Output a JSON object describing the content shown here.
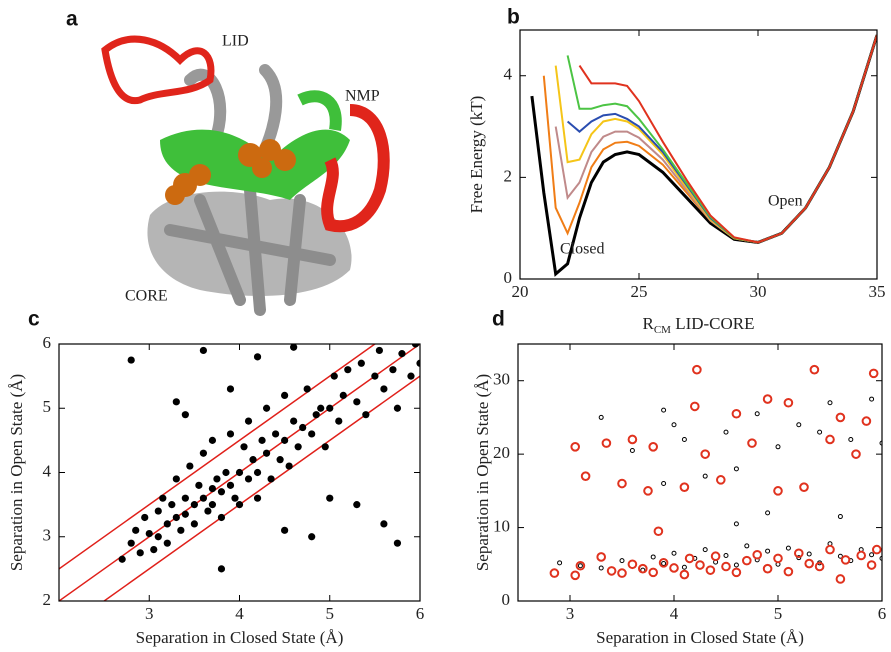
{
  "image_panel": {
    "label": "a",
    "annotations": [
      "LID",
      "NMP",
      "CORE"
    ]
  },
  "chart_data": [
    {
      "type": "line",
      "label": "b",
      "y_label": "Free Energy (kT)",
      "x_label_parts": [
        "R",
        "CM",
        " LID-CORE"
      ],
      "annotations": [
        "Open",
        "Closed"
      ],
      "x": [
        20,
        20.5,
        21,
        21.5,
        22,
        22.5,
        23,
        23.5,
        24,
        24.5,
        25,
        26,
        27,
        28,
        29,
        30,
        31,
        32,
        33,
        34,
        35
      ],
      "xlim": [
        20,
        35
      ],
      "ylim": [
        0,
        4.9
      ],
      "xticks": [
        20,
        25,
        30,
        35
      ],
      "yticks": [
        0,
        2,
        4
      ],
      "series": [
        {
          "color": "#000000",
          "values": [
            null,
            3.6,
            1.7,
            0.1,
            0.3,
            1.2,
            1.9,
            2.3,
            2.45,
            2.5,
            2.45,
            2.1,
            1.6,
            1.1,
            0.78,
            0.72,
            0.9,
            1.4,
            2.2,
            3.3,
            4.8
          ]
        },
        {
          "color": "#f07d16",
          "values": [
            null,
            null,
            4.0,
            1.4,
            0.9,
            1.5,
            2.2,
            2.55,
            2.68,
            2.7,
            2.62,
            2.25,
            1.7,
            1.15,
            0.8,
            0.72,
            0.9,
            1.4,
            2.2,
            3.3,
            4.8
          ]
        },
        {
          "color": "#c08a8a",
          "values": [
            null,
            null,
            null,
            3.0,
            1.6,
            1.9,
            2.5,
            2.8,
            2.9,
            2.9,
            2.78,
            2.35,
            1.75,
            1.15,
            0.8,
            0.72,
            0.9,
            1.4,
            2.2,
            3.3,
            4.8
          ]
        },
        {
          "color": "#f5c518",
          "values": [
            null,
            null,
            null,
            4.2,
            2.3,
            2.35,
            2.85,
            3.1,
            3.15,
            3.1,
            2.95,
            2.45,
            1.8,
            1.17,
            0.8,
            0.72,
            0.9,
            1.4,
            2.2,
            3.3,
            4.8
          ]
        },
        {
          "color": "#2a4db0",
          "values": [
            null,
            null,
            null,
            null,
            3.1,
            2.9,
            3.1,
            3.22,
            3.25,
            3.15,
            3.0,
            2.5,
            1.85,
            1.2,
            0.81,
            0.72,
            0.9,
            1.4,
            2.2,
            3.3,
            4.8
          ]
        },
        {
          "color": "#4cc444",
          "values": [
            null,
            null,
            null,
            null,
            4.4,
            3.35,
            3.35,
            3.42,
            3.45,
            3.4,
            3.15,
            2.55,
            1.88,
            1.22,
            0.81,
            0.72,
            0.9,
            1.4,
            2.2,
            3.3,
            4.8
          ]
        },
        {
          "color": "#e0321e",
          "values": [
            null,
            null,
            null,
            null,
            null,
            4.2,
            3.85,
            3.85,
            3.85,
            3.8,
            3.5,
            2.7,
            1.95,
            1.25,
            0.82,
            0.72,
            0.9,
            1.4,
            2.2,
            3.3,
            4.8
          ]
        }
      ]
    },
    {
      "type": "scatter",
      "label": "c",
      "y_label": "Separation in Open State (Å)",
      "x_label": "Separation in Closed State (Å)",
      "xlim": [
        2,
        6
      ],
      "ylim": [
        2,
        6
      ],
      "xticks": [
        3,
        4,
        5,
        6
      ],
      "yticks": [
        2,
        3,
        4,
        5,
        6
      ],
      "reference_lines": [
        {
          "slope": 1,
          "intercept": 0
        },
        {
          "slope": 1,
          "intercept": 0.5
        },
        {
          "slope": 1,
          "intercept": -0.5
        }
      ],
      "reference_color": "#e0201a",
      "series": [
        {
          "color": "#000000",
          "marker": "filled",
          "x": [
            2.7,
            2.8,
            2.85,
            2.9,
            2.95,
            3.0,
            3.05,
            3.1,
            3.1,
            3.15,
            3.2,
            3.2,
            3.25,
            3.3,
            3.3,
            3.35,
            3.4,
            3.4,
            3.45,
            3.5,
            3.5,
            3.55,
            3.6,
            3.6,
            3.65,
            3.7,
            3.7,
            3.7,
            3.75,
            3.8,
            3.8,
            3.85,
            3.9,
            3.9,
            3.95,
            4.0,
            4.0,
            4.05,
            4.1,
            4.1,
            4.15,
            4.2,
            4.2,
            4.25,
            4.3,
            4.3,
            4.35,
            4.4,
            4.45,
            4.5,
            4.5,
            4.55,
            4.6,
            4.65,
            4.7,
            4.75,
            4.8,
            4.85,
            4.9,
            4.95,
            5.0,
            5.05,
            5.1,
            5.15,
            5.2,
            5.3,
            5.35,
            5.4,
            5.5,
            5.55,
            5.6,
            5.7,
            5.75,
            5.8,
            5.9,
            5.95,
            6.0,
            2.8,
            3.3,
            3.6,
            4.2,
            4.6,
            5.3,
            5.6,
            5.75,
            4.8,
            3.8,
            3.4,
            3.9,
            4.5,
            5.0
          ],
          "values": [
            2.65,
            2.9,
            3.1,
            2.75,
            3.3,
            3.05,
            2.8,
            3.4,
            3.0,
            3.6,
            3.2,
            2.9,
            3.5,
            3.3,
            3.9,
            3.1,
            3.6,
            3.35,
            4.1,
            3.5,
            3.2,
            3.8,
            3.6,
            4.3,
            3.4,
            3.75,
            3.5,
            4.5,
            3.9,
            3.7,
            3.3,
            4.0,
            3.8,
            4.6,
            3.6,
            4.0,
            3.5,
            4.4,
            3.9,
            4.8,
            4.2,
            4.0,
            3.6,
            4.5,
            4.3,
            5.0,
            3.9,
            4.6,
            4.2,
            4.5,
            5.2,
            4.1,
            4.8,
            4.4,
            4.7,
            5.3,
            4.6,
            4.9,
            5.0,
            4.4,
            5.0,
            5.5,
            4.8,
            5.2,
            5.6,
            5.1,
            5.7,
            4.9,
            5.5,
            5.9,
            5.3,
            5.6,
            5.0,
            5.85,
            5.5,
            6.0,
            5.7,
            5.75,
            5.1,
            5.9,
            5.8,
            5.95,
            3.5,
            3.2,
            2.9,
            3.0,
            2.5,
            4.9,
            5.3,
            3.1,
            3.6
          ]
        }
      ]
    },
    {
      "type": "scatter",
      "label": "d",
      "y_label": "Separation in Open State (Å)",
      "x_label": "Separation in Closed State (Å)",
      "xlim": [
        2.5,
        6
      ],
      "ylim": [
        0,
        35
      ],
      "xticks": [
        3,
        4,
        5,
        6
      ],
      "yticks": [
        0,
        10,
        20,
        30
      ],
      "series": [
        {
          "color": "#000000",
          "marker": "hollow-small",
          "x": [
            2.9,
            3.1,
            3.3,
            3.5,
            3.7,
            3.8,
            3.9,
            4.0,
            4.1,
            4.2,
            4.3,
            4.4,
            4.5,
            4.6,
            4.7,
            4.8,
            4.9,
            5.0,
            5.1,
            5.2,
            5.3,
            5.4,
            5.5,
            5.6,
            5.7,
            5.8,
            5.9,
            6.0,
            3.3,
            3.6,
            3.9,
            4.0,
            4.1,
            4.3,
            4.5,
            4.6,
            4.8,
            5.0,
            5.2,
            5.4,
            5.5,
            5.7,
            5.9,
            6.0,
            3.9,
            4.9,
            4.6,
            5.6
          ],
          "values": [
            5.2,
            4.8,
            4.5,
            5.5,
            4.2,
            6.0,
            5.1,
            6.5,
            4.6,
            5.8,
            7.0,
            5.3,
            6.2,
            4.9,
            7.5,
            5.6,
            6.8,
            5.0,
            7.2,
            5.9,
            6.4,
            5.2,
            7.8,
            6.1,
            5.5,
            7.0,
            6.3,
            5.8,
            25,
            20.5,
            26,
            24,
            22,
            17,
            23,
            18,
            25.5,
            21,
            24,
            23,
            27,
            22,
            27.5,
            21.5,
            16,
            12,
            10.5,
            11.5
          ]
        },
        {
          "color": "#e0321e",
          "marker": "hollow",
          "x": [
            2.85,
            3.05,
            3.1,
            3.3,
            3.4,
            3.5,
            3.6,
            3.7,
            3.8,
            3.9,
            4.0,
            4.1,
            4.15,
            4.25,
            4.35,
            4.4,
            4.5,
            4.6,
            4.7,
            4.8,
            4.9,
            5.0,
            5.1,
            5.2,
            5.3,
            5.4,
            5.5,
            5.6,
            5.65,
            5.8,
            5.9,
            5.95,
            3.05,
            3.15,
            3.35,
            3.5,
            3.6,
            3.75,
            3.8,
            3.85,
            4.1,
            4.2,
            4.22,
            4.3,
            4.45,
            4.6,
            4.75,
            4.9,
            5.0,
            5.1,
            5.25,
            5.35,
            5.5,
            5.6,
            5.75,
            5.85,
            5.92
          ],
          "values": [
            3.8,
            3.5,
            4.8,
            6.0,
            4.1,
            3.8,
            5.0,
            4.4,
            3.9,
            5.2,
            4.5,
            3.6,
            5.8,
            4.9,
            4.2,
            6.1,
            4.7,
            3.9,
            5.5,
            6.3,
            4.4,
            5.8,
            4.0,
            6.5,
            5.1,
            4.7,
            7.0,
            3.0,
            5.6,
            6.2,
            4.9,
            7.0,
            21,
            17,
            21.5,
            16,
            22,
            15,
            21,
            9.5,
            15.5,
            26.5,
            31.5,
            20,
            16.5,
            25.5,
            21.5,
            27.5,
            15,
            27,
            15.5,
            31.5,
            22,
            25,
            20,
            24.5,
            31
          ]
        }
      ]
    }
  ]
}
